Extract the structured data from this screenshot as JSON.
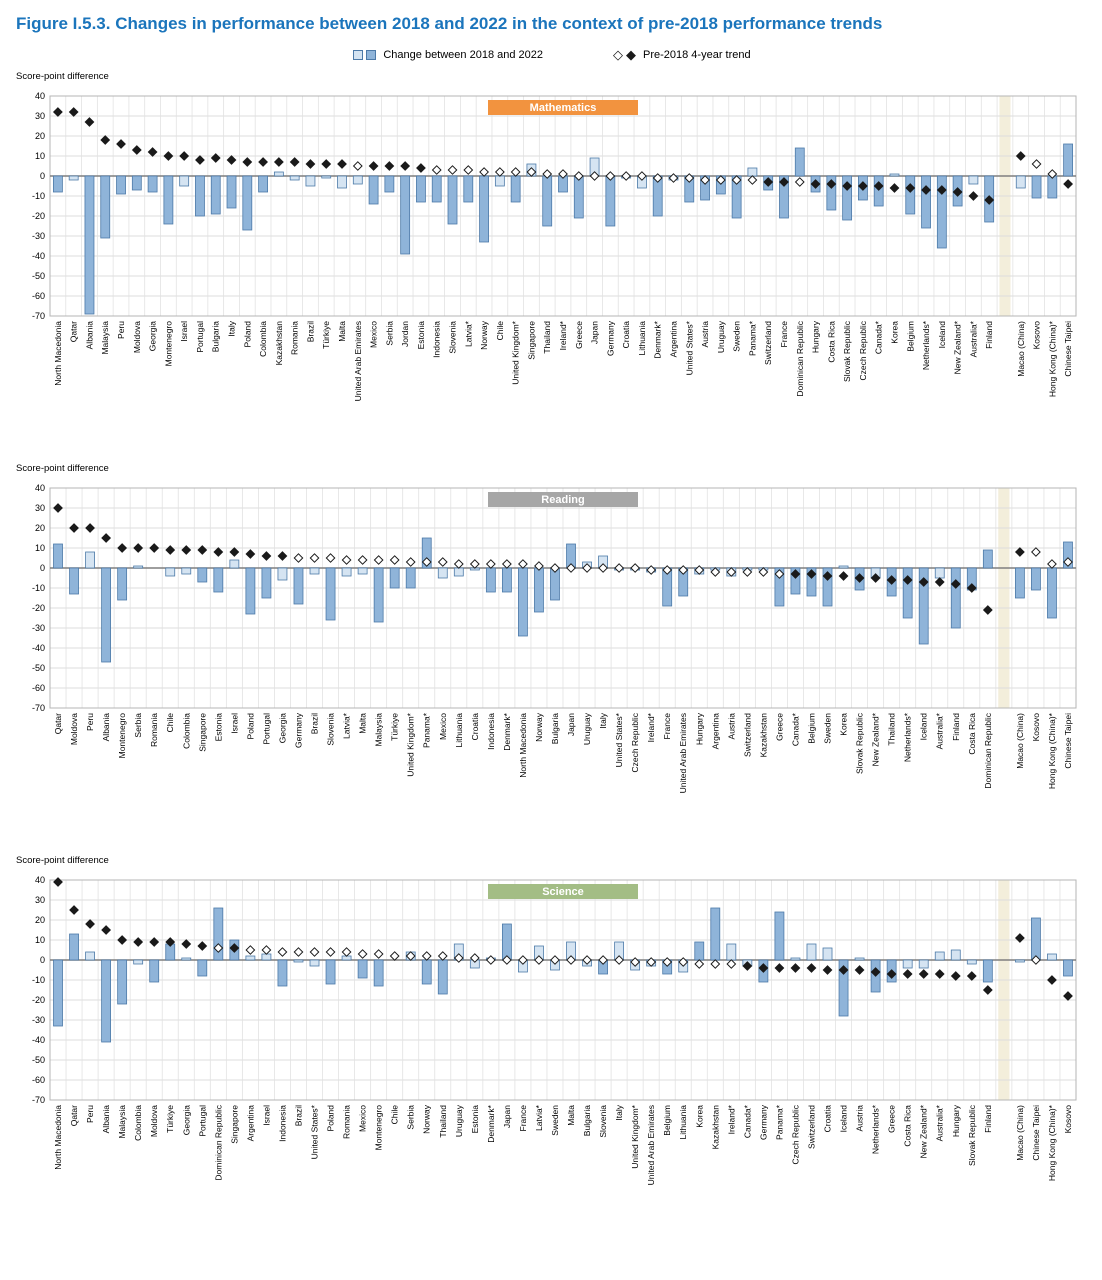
{
  "title": "Figure I.5.3. Changes in performance between 2018 and 2022 in the context of pre-2018 performance trends",
  "legend": {
    "bars_label": "Change between 2018 and 2022",
    "trend_label": "Pre-2018 4-year trend"
  },
  "colors": {
    "title": "#1b75bc",
    "bar_sig": "#8fb4d9",
    "bar_nonsig": "#d5e4f2",
    "bar_border": "#4d7aa8",
    "diamond_fill": "#1a1a1a",
    "diamond_stroke": "#1a1a1a",
    "separator_band": "#f3eedb",
    "grid": "#dcdcdc",
    "zero_line": "#7f7f7f",
    "math_label": "#f2933f",
    "reading_label": "#a6a6a6",
    "science_label": "#a3bd85"
  },
  "chart_data": [
    {
      "type": "bar",
      "subject": "Mathematics",
      "subject_color": "#f2933f",
      "ylabel": "Score-point difference",
      "ylim": [
        -70,
        40
      ],
      "y_tick_step": 10,
      "separator_before_index": 60,
      "countries": [
        "North Macedonia",
        "Qatar",
        "Albania",
        "Malaysia",
        "Peru",
        "Moldova",
        "Georgia",
        "Montenegro",
        "Israel",
        "Portugal",
        "Bulgaria",
        "Italy",
        "Poland",
        "Colombia",
        "Kazakhstan",
        "Romania",
        "Brazil",
        "Türkiye",
        "Malta",
        "United Arab Emirates",
        "Mexico",
        "Serbia",
        "Jordan",
        "Estonia",
        "Indonesia",
        "Slovenia",
        "Latvia*",
        "Norway",
        "Chile",
        "United Kingdom*",
        "Singapore",
        "Thailand",
        "Ireland*",
        "Greece",
        "Japan",
        "Germany",
        "Croatia",
        "Lithuania",
        "Denmark*",
        "Argentina",
        "United States*",
        "Austria",
        "Uruguay",
        "Sweden",
        "Panama*",
        "Switzerland",
        "France",
        "Dominican Republic",
        "Hungary",
        "Costa Rica",
        "Slovak Republic",
        "Czech Republic",
        "Canada*",
        "Korea",
        "Belgium",
        "Netherlands*",
        "Iceland",
        "New Zealand*",
        "Australia*",
        "Finland",
        "Macao (China)",
        "Kosovo",
        "Hong Kong (China)*",
        "Chinese Taipei"
      ],
      "series": [
        {
          "name": "Change between 2018 and 2022",
          "values": [
            -8,
            -2,
            -69,
            -31,
            -9,
            -7,
            -8,
            -24,
            -5,
            -20,
            -19,
            -16,
            -27,
            -8,
            2,
            -2,
            -5,
            -1,
            -6,
            -4,
            -14,
            -8,
            -39,
            -13,
            -13,
            -24,
            -13,
            -33,
            -5,
            -13,
            6,
            -25,
            -8,
            -21,
            9,
            -25,
            -1,
            -6,
            -20,
            -2,
            -13,
            -12,
            -9,
            -21,
            4,
            -7,
            -21,
            14,
            -8,
            -17,
            -22,
            -12,
            -15,
            1,
            -19,
            -26,
            -36,
            -15,
            -4,
            -23,
            -6,
            -11,
            -11,
            16
          ],
          "significant": [
            1,
            0,
            1,
            1,
            1,
            1,
            1,
            1,
            0,
            1,
            1,
            1,
            1,
            1,
            0,
            0,
            0,
            0,
            0,
            0,
            1,
            1,
            1,
            1,
            1,
            1,
            1,
            1,
            0,
            1,
            0,
            1,
            1,
            1,
            0,
            1,
            0,
            0,
            1,
            0,
            1,
            1,
            1,
            1,
            0,
            1,
            1,
            1,
            1,
            1,
            1,
            1,
            1,
            0,
            1,
            1,
            1,
            1,
            0,
            1,
            0,
            1,
            1,
            1
          ]
        },
        {
          "name": "Pre-2018 4-year trend",
          "values": [
            32,
            32,
            27,
            18,
            16,
            13,
            12,
            10,
            10,
            8,
            9,
            8,
            7,
            7,
            7,
            7,
            6,
            6,
            6,
            5,
            5,
            5,
            5,
            4,
            3,
            3,
            3,
            2,
            2,
            2,
            2,
            1,
            1,
            0,
            0,
            0,
            0,
            0,
            -1,
            -1,
            -1,
            -2,
            -2,
            -2,
            -2,
            -3,
            -3,
            -3,
            -4,
            -4,
            -5,
            -5,
            -5,
            -6,
            -6,
            -7,
            -7,
            -8,
            -10,
            -12,
            10,
            6,
            1,
            -4
          ],
          "significant": [
            1,
            1,
            1,
            1,
            1,
            1,
            1,
            1,
            1,
            1,
            1,
            1,
            1,
            1,
            1,
            1,
            1,
            1,
            1,
            0,
            1,
            1,
            1,
            1,
            0,
            0,
            0,
            0,
            0,
            0,
            0,
            0,
            0,
            0,
            0,
            0,
            0,
            0,
            0,
            0,
            0,
            0,
            0,
            0,
            0,
            1,
            1,
            0,
            1,
            1,
            1,
            1,
            1,
            1,
            1,
            1,
            1,
            1,
            1,
            1,
            1,
            0,
            0,
            1
          ]
        }
      ]
    },
    {
      "type": "bar",
      "subject": "Reading",
      "subject_color": "#a6a6a6",
      "ylabel": "Score-point difference",
      "ylim": [
        -70,
        40
      ],
      "y_tick_step": 10,
      "separator_before_index": 59,
      "countries": [
        "Qatar",
        "Moldova",
        "Peru",
        "Albania",
        "Montenegro",
        "Serbia",
        "Romania",
        "Chile",
        "Colombia",
        "Singapore",
        "Estonia",
        "Israel",
        "Poland",
        "Portugal",
        "Georgia",
        "Germany",
        "Brazil",
        "Slovenia",
        "Latvia*",
        "Malta",
        "Malaysia",
        "Türkiye",
        "United Kingdom*",
        "Panama*",
        "Mexico",
        "Lithuania",
        "Croatia",
        "Indonesia",
        "Denmark*",
        "North Macedonia",
        "Norway",
        "Bulgaria",
        "Japan",
        "Uruguay",
        "Italy",
        "United States*",
        "Czech Republic",
        "Ireland*",
        "France",
        "United Arab Emirates",
        "Hungary",
        "Argentina",
        "Austria",
        "Switzerland",
        "Kazakhstan",
        "Greece",
        "Canada*",
        "Belgium",
        "Sweden",
        "Korea",
        "Slovak Republic",
        "New Zealand*",
        "Thailand",
        "Netherlands*",
        "Iceland",
        "Australia*",
        "Finland",
        "Costa Rica",
        "Dominican Republic",
        "Macao (China)",
        "Kosovo",
        "Hong Kong (China)*",
        "Chinese Taipei"
      ],
      "series": [
        {
          "name": "Change between 2018 and 2022",
          "values": [
            12,
            -13,
            8,
            -47,
            -16,
            1,
            0,
            -4,
            -3,
            -7,
            -12,
            4,
            -23,
            -15,
            -6,
            -18,
            -3,
            -26,
            -4,
            -3,
            -27,
            -10,
            -10,
            15,
            -5,
            -4,
            -1,
            -12,
            -12,
            -34,
            -22,
            -16,
            12,
            3,
            6,
            -1,
            -1,
            -2,
            -19,
            -14,
            -3,
            -1,
            -4,
            -1,
            -1,
            -19,
            -13,
            -14,
            -19,
            1,
            -11,
            -5,
            -14,
            -25,
            -38,
            -5,
            -30,
            -11,
            9,
            -15,
            -11,
            -25,
            13
          ],
          "significant": [
            1,
            1,
            0,
            1,
            1,
            0,
            0,
            0,
            0,
            1,
            1,
            0,
            1,
            1,
            0,
            1,
            0,
            1,
            0,
            0,
            1,
            1,
            1,
            1,
            0,
            0,
            0,
            1,
            1,
            1,
            1,
            1,
            1,
            0,
            0,
            0,
            0,
            0,
            1,
            1,
            0,
            0,
            0,
            0,
            0,
            1,
            1,
            1,
            1,
            0,
            1,
            0,
            1,
            1,
            1,
            0,
            1,
            1,
            1,
            1,
            1,
            1,
            1
          ]
        },
        {
          "name": "Pre-2018 4-year trend",
          "values": [
            30,
            20,
            20,
            15,
            10,
            10,
            10,
            9,
            9,
            9,
            8,
            8,
            7,
            6,
            6,
            5,
            5,
            5,
            4,
            4,
            4,
            4,
            3,
            3,
            3,
            2,
            2,
            2,
            2,
            2,
            1,
            0,
            0,
            0,
            0,
            0,
            0,
            -1,
            -1,
            -1,
            -1,
            -2,
            -2,
            -2,
            -2,
            -3,
            -3,
            -3,
            -4,
            -4,
            -5,
            -5,
            -6,
            -6,
            -7,
            -7,
            -8,
            -10,
            -21,
            8,
            8,
            2,
            3
          ],
          "significant": [
            1,
            1,
            1,
            1,
            1,
            1,
            1,
            1,
            1,
            1,
            1,
            1,
            1,
            1,
            1,
            0,
            0,
            0,
            0,
            0,
            0,
            0,
            0,
            0,
            0,
            0,
            0,
            0,
            0,
            0,
            0,
            0,
            0,
            0,
            0,
            0,
            0,
            0,
            0,
            0,
            0,
            0,
            0,
            0,
            0,
            0,
            1,
            1,
            1,
            1,
            1,
            1,
            1,
            1,
            1,
            1,
            1,
            1,
            1,
            1,
            0,
            0,
            0
          ]
        }
      ]
    },
    {
      "type": "bar",
      "subject": "Science",
      "subject_color": "#a3bd85",
      "ylabel": "Score-point difference",
      "ylim": [
        -70,
        40
      ],
      "y_tick_step": 10,
      "separator_before_index": 59,
      "countries": [
        "North Macedonia",
        "Qatar",
        "Peru",
        "Albania",
        "Malaysia",
        "Colombia",
        "Moldova",
        "Türkiye",
        "Georgia",
        "Portugal",
        "Dominican Republic",
        "Singapore",
        "Argentina",
        "Israel",
        "Indonesia",
        "Brazil",
        "United States*",
        "Poland",
        "Romania",
        "Mexico",
        "Montenegro",
        "Chile",
        "Serbia",
        "Norway",
        "Thailand",
        "Uruguay",
        "Estonia",
        "Denmark*",
        "Japan",
        "France",
        "Latvia*",
        "Sweden",
        "Malta",
        "Bulgaria",
        "Slovenia",
        "Italy",
        "United Kingdom*",
        "United Arab Emirates",
        "Belgium",
        "Lithuania",
        "Korea",
        "Kazakhstan",
        "Ireland*",
        "Canada*",
        "Germany",
        "Panama*",
        "Czech Republic",
        "Switzerland",
        "Croatia",
        "Iceland",
        "Austria",
        "Netherlands*",
        "Greece",
        "Costa Rica",
        "New Zealand*",
        "Australia*",
        "Hungary",
        "Slovak Republic",
        "Finland",
        "Macao (China)",
        "Chinese Taipei",
        "Hong Kong (China)*",
        "Kosovo"
      ],
      "series": [
        {
          "name": "Change between 2018 and 2022",
          "values": [
            -33,
            13,
            4,
            -41,
            -22,
            -2,
            -11,
            8,
            1,
            -8,
            26,
            10,
            2,
            3,
            -13,
            -1,
            -3,
            -12,
            2,
            -9,
            -13,
            0,
            4,
            -12,
            -17,
            8,
            -4,
            1,
            18,
            -6,
            7,
            -5,
            9,
            -3,
            -7,
            9,
            -5,
            -3,
            -7,
            -6,
            9,
            26,
            8,
            -3,
            -11,
            24,
            1,
            8,
            6,
            -28,
            1,
            -16,
            -11,
            -4,
            -4,
            4,
            5,
            -2,
            -11,
            -1,
            21,
            3,
            -8
          ],
          "significant": [
            1,
            1,
            0,
            1,
            1,
            0,
            1,
            1,
            0,
            1,
            1,
            1,
            0,
            0,
            1,
            0,
            0,
            1,
            0,
            1,
            1,
            0,
            0,
            1,
            1,
            0,
            0,
            0,
            1,
            0,
            0,
            0,
            0,
            0,
            1,
            0,
            0,
            0,
            1,
            0,
            1,
            1,
            0,
            0,
            1,
            1,
            0,
            0,
            0,
            1,
            0,
            1,
            1,
            0,
            0,
            0,
            0,
            0,
            1,
            0,
            1,
            0,
            1
          ]
        },
        {
          "name": "Pre-2018 4-year trend",
          "values": [
            39,
            25,
            18,
            15,
            10,
            9,
            9,
            9,
            8,
            7,
            6,
            6,
            5,
            5,
            4,
            4,
            4,
            4,
            4,
            3,
            3,
            2,
            2,
            2,
            2,
            1,
            1,
            0,
            0,
            0,
            0,
            0,
            0,
            0,
            0,
            0,
            -1,
            -1,
            -1,
            -1,
            -2,
            -2,
            -2,
            -3,
            -4,
            -4,
            -4,
            -4,
            -5,
            -5,
            -5,
            -6,
            -7,
            -7,
            -7,
            -7,
            -8,
            -8,
            -15,
            11,
            0,
            -10,
            -18
          ],
          "significant": [
            1,
            1,
            1,
            1,
            1,
            1,
            1,
            1,
            1,
            1,
            0,
            1,
            0,
            0,
            0,
            0,
            0,
            0,
            0,
            0,
            0,
            0,
            0,
            0,
            0,
            0,
            0,
            0,
            0,
            0,
            0,
            0,
            0,
            0,
            0,
            0,
            0,
            0,
            0,
            0,
            0,
            0,
            0,
            1,
            1,
            1,
            1,
            1,
            1,
            1,
            1,
            1,
            1,
            1,
            1,
            1,
            1,
            1,
            1,
            1,
            0,
            1,
            1
          ]
        }
      ]
    }
  ]
}
